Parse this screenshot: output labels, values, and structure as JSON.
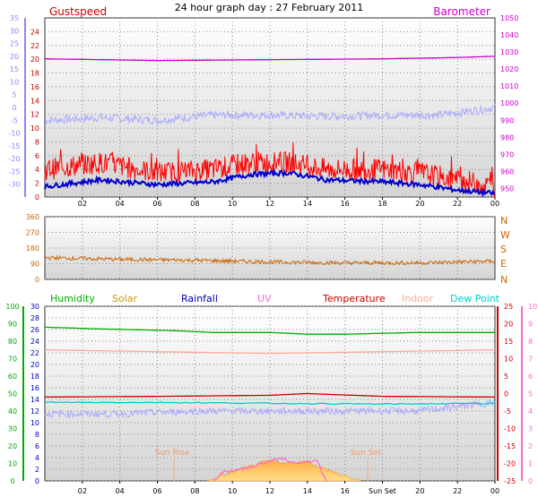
{
  "title": "24 hour graph day : 27 February 2011",
  "colors": {
    "gust": "#ff0000",
    "wind": "#0000cc",
    "barometer": "#cc00cc",
    "windchill": "#aaaaff",
    "direction": "#cc6600",
    "humidity": "#00aa00",
    "solar": "#cc9900",
    "rainfall": "#0000aa",
    "uv": "#ff66cc",
    "temperature": "#cc0000",
    "indoor": "#ffaa99",
    "dewpoint": "#00cccc",
    "axis_left": "#8888ff",
    "axis_gust": "#cc0000",
    "axis_baro": "#cc00cc",
    "axis_dir": "#cc6600",
    "axis_hum": "#00aa00",
    "axis_rain": "#0000cc",
    "axis_temp": "#cc0000",
    "axis_uv": "#ff66cc"
  },
  "x_ticks": [
    "02",
    "04",
    "06",
    "08",
    "10",
    "12",
    "14",
    "16",
    "18",
    "20",
    "22",
    "00"
  ],
  "x_ticks_bottom": [
    "02",
    "04",
    "06",
    "08",
    "10",
    "12",
    "14",
    "16",
    "Sun Set",
    "20",
    "22",
    "00"
  ],
  "sun_rise": "Sun Rise",
  "sun_set": "Sun Set",
  "chart_data": [
    {
      "type": "line",
      "title": "Gustspeed / Barometer",
      "labels": {
        "left": "Gustspeed",
        "right": "Barometer"
      },
      "x": {
        "unit": "hour",
        "range": [
          0,
          24
        ]
      },
      "axes": {
        "outer_left": {
          "ylim": [
            -35,
            35
          ],
          "ticks": [
            "35",
            "30",
            "25",
            "20",
            "15",
            "10",
            "5",
            "0",
            "-5",
            "-10",
            "-15",
            "-20",
            "-25",
            "-30"
          ]
        },
        "inner_left": {
          "ylim": [
            0,
            26
          ],
          "ticks": [
            "24",
            "22",
            "20",
            "18",
            "16",
            "14",
            "12",
            "10",
            "8",
            "6",
            "4",
            "2",
            "0"
          ]
        },
        "right": {
          "ylim": [
            945,
            1050
          ],
          "ticks": [
            "1050",
            "1040",
            "1030",
            "1020",
            "1010",
            "1000",
            "990",
            "980",
            "970",
            "960",
            "950"
          ]
        }
      },
      "series": [
        {
          "name": "Barometer",
          "axis": "right",
          "hours": [
            0,
            6,
            12,
            18,
            22,
            24
          ],
          "values": [
            1026,
            1025,
            1025.5,
            1026,
            1026.8,
            1027.5
          ]
        },
        {
          "name": "Gustspeed",
          "axis": "inner_left",
          "hours": [
            0,
            3,
            6,
            9,
            11,
            13,
            15,
            18,
            20,
            22,
            24
          ],
          "values": [
            4,
            5,
            3.5,
            4,
            5,
            5,
            4,
            4,
            3.5,
            2.5,
            1.5
          ]
        },
        {
          "axis": "inner_left",
          "hours": [
            0,
            3,
            6,
            9,
            11,
            13,
            15,
            18,
            20,
            22,
            24
          ],
          "values": [
            1.5,
            2.5,
            1.8,
            2.2,
            3.3,
            3.5,
            2.5,
            2.2,
            1.8,
            1.0,
            0.5
          ]
        },
        {
          "axis": "outer_left",
          "hours": [
            0,
            3,
            6,
            9,
            12,
            15,
            18,
            21,
            24
          ],
          "values": [
            -5,
            -4,
            -5,
            -3,
            -3,
            -3.5,
            -3,
            -3,
            0
          ]
        }
      ]
    },
    {
      "type": "line",
      "title": "Wind direction",
      "labels": {
        "right": [
          "N",
          "W",
          "S",
          "E",
          "N"
        ]
      },
      "axes": {
        "left": {
          "ylim": [
            0,
            360
          ],
          "ticks": [
            "360",
            "270",
            "180",
            "90",
            "0"
          ]
        }
      },
      "series": [
        {
          "axis": "left",
          "hours": [
            0,
            4,
            8,
            12,
            16,
            20,
            24
          ],
          "values": [
            125,
            115,
            110,
            100,
            95,
            95,
            105
          ]
        }
      ]
    },
    {
      "type": "line",
      "title": "Humidity / Solar / Rainfall / UV / Temperature / Indoor / Dew Point",
      "legend": [
        "Humidity",
        "Solar",
        "Rainfall",
        "UV",
        "Temperature",
        "Indoor",
        "Dew Point"
      ],
      "axes": {
        "humidity": {
          "ylim": [
            0,
            100
          ],
          "ticks": [
            "100",
            "90",
            "80",
            "70",
            "60",
            "50",
            "40",
            "30",
            "20",
            "10",
            "0"
          ]
        },
        "rainfall": {
          "ylim": [
            0,
            30
          ],
          "ticks": [
            "30",
            "28",
            "26",
            "24",
            "22",
            "20",
            "18",
            "16",
            "14",
            "12",
            "10",
            "8",
            "6",
            "4",
            "2",
            "0"
          ]
        },
        "temperature": {
          "ylim": [
            -25,
            25
          ],
          "ticks": [
            "25",
            "20",
            "15",
            "10",
            "5",
            "0",
            "-5",
            "-10",
            "-15",
            "-20",
            "-25"
          ]
        },
        "uv": {
          "ylim": [
            0,
            10
          ],
          "ticks": [
            "10",
            "9",
            "8",
            "7",
            "6",
            "5",
            "4",
            "3",
            "2",
            "1",
            "0"
          ]
        }
      },
      "series": [
        {
          "name": "Humidity",
          "axis": "humidity",
          "hours": [
            0,
            3,
            7,
            9,
            12,
            14,
            16,
            20,
            24
          ],
          "values": [
            88,
            87,
            86,
            85,
            85,
            84,
            84,
            85,
            85
          ]
        },
        {
          "name": "Indoor",
          "axis": "temperature",
          "hours": [
            0,
            6,
            12,
            18,
            24
          ],
          "values": [
            12.5,
            12,
            11.5,
            12,
            12.5
          ]
        },
        {
          "name": "Temperature",
          "axis": "temperature",
          "hours": [
            0,
            6,
            12,
            14,
            18,
            24
          ],
          "values": [
            -1,
            -0.8,
            -0.5,
            0,
            -0.8,
            -1
          ]
        },
        {
          "name": "Dew Point",
          "axis": "temperature",
          "hours": [
            0,
            6,
            12,
            18,
            24
          ],
          "values": [
            -2.5,
            -2.5,
            -2.8,
            -3,
            -2.8
          ]
        },
        {
          "axis": "rainfall",
          "hours": [
            0,
            4,
            8,
            12,
            16,
            20,
            24
          ],
          "values": [
            11.5,
            11.5,
            12,
            12,
            12,
            12,
            13.5
          ]
        },
        {
          "name": "Solar",
          "axis": "rainfall",
          "hours": [
            8.7,
            10,
            11,
            12,
            13,
            14,
            14.5,
            15,
            16,
            16.8
          ],
          "values": [
            0,
            1.5,
            2.5,
            3.5,
            3,
            3.5,
            2.5,
            2,
            0.8,
            0
          ]
        },
        {
          "name": "UV",
          "axis": "uv",
          "hours": [
            9,
            9.5,
            11,
            12.5,
            13.5,
            14.5,
            15
          ],
          "values": [
            0,
            0.5,
            0.8,
            1.3,
            1,
            1.2,
            0
          ]
        }
      ]
    }
  ]
}
